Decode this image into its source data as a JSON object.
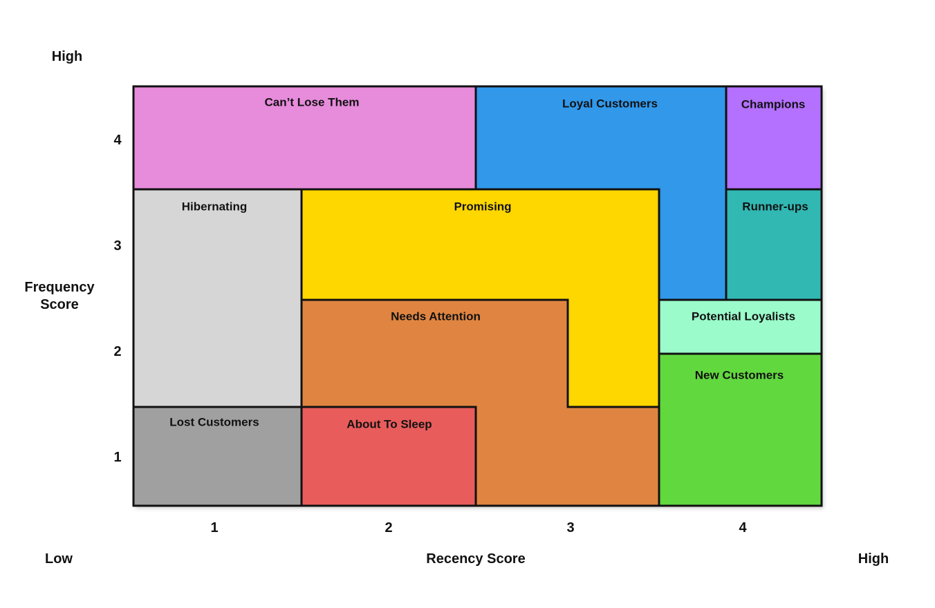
{
  "axes": {
    "y_high_label": "High",
    "y_title": "Frequency Score",
    "x_low_label": "Low",
    "x_title": "Recency Score",
    "x_high_label": "High",
    "x_ticks": [
      "1",
      "2",
      "3",
      "4"
    ],
    "y_ticks": [
      "4",
      "3",
      "2",
      "1"
    ]
  },
  "segments": [
    {
      "key": "cant_lose_them",
      "label": "Can’t Lose Them",
      "color": "#E78BDB"
    },
    {
      "key": "loyal_customers",
      "label": "Loyal Customers",
      "color": "#3198EA"
    },
    {
      "key": "champions",
      "label": "Champions",
      "color": "#B470FF"
    },
    {
      "key": "hibernating",
      "label": "Hibernating",
      "color": "#D6D6D6"
    },
    {
      "key": "promising",
      "label": "Promising",
      "color": "#FED600"
    },
    {
      "key": "runner_ups",
      "label": "Runner-ups",
      "color": "#31B8B3"
    },
    {
      "key": "needs_attention",
      "label": "Needs Attention",
      "color": "#E08541"
    },
    {
      "key": "potential_loyalists",
      "label": "Potential Loyalists",
      "color": "#9BFBCB"
    },
    {
      "key": "new_customers",
      "label": "New Customers",
      "color": "#62D83F"
    },
    {
      "key": "lost_customers",
      "label": "Lost Customers",
      "color": "#A0A0A0"
    },
    {
      "key": "about_to_sleep",
      "label": "About To Sleep",
      "color": "#E95C5C"
    }
  ]
}
